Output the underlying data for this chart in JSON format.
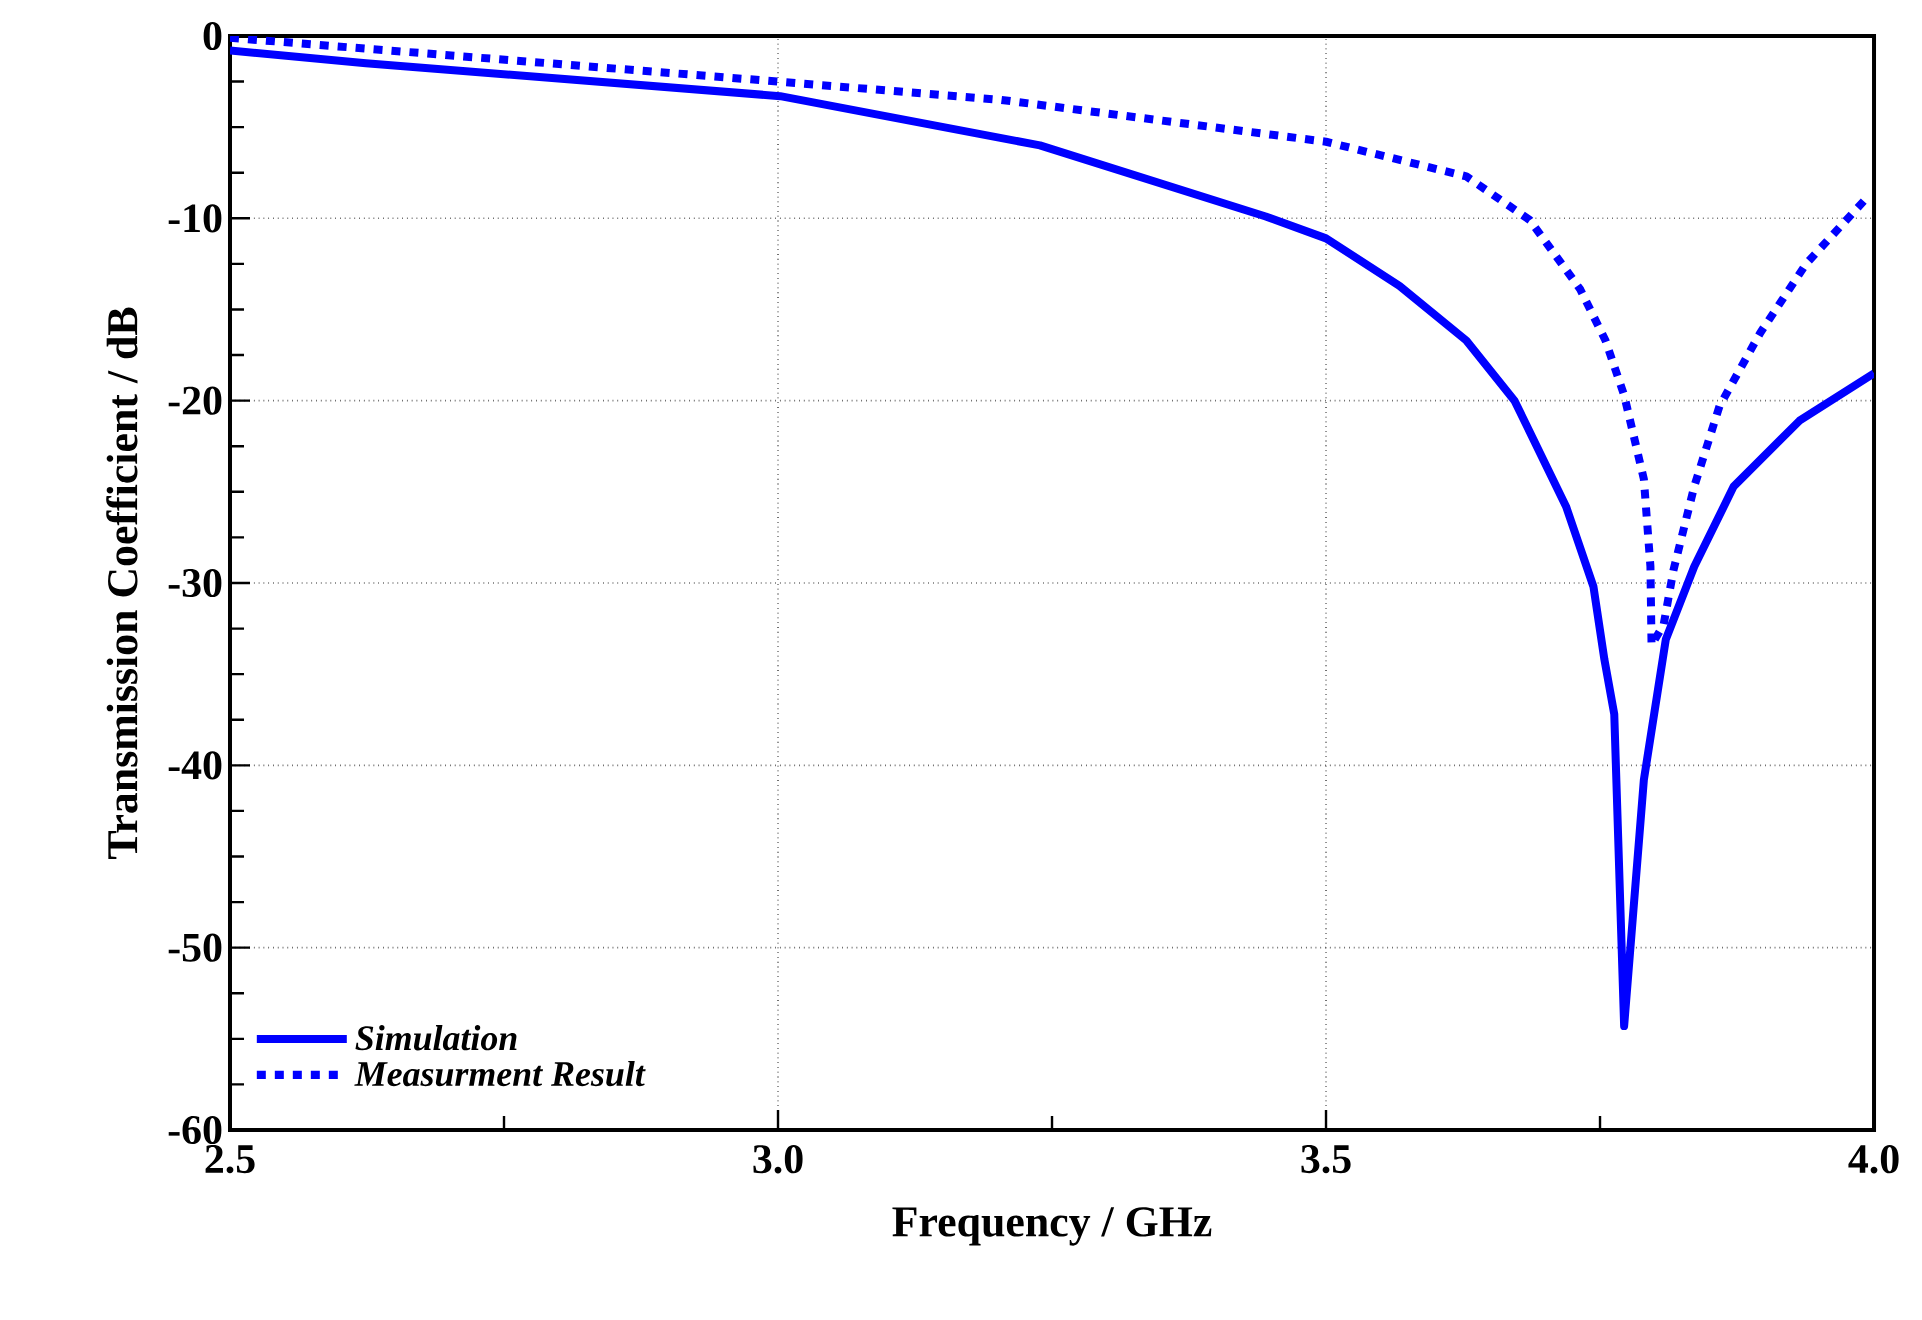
{
  "chart_data": {
    "type": "line",
    "xlabel": "Frequency / GHz",
    "ylabel": "Transmission Coefficient / dB",
    "xlim": [
      2.5,
      4.0
    ],
    "ylim": [
      -60,
      0
    ],
    "xticks": [
      2.5,
      {
        "value": 3,
        "label": "3.0"
      },
      3.5,
      {
        "value": 4,
        "label": "4.0"
      }
    ],
    "yticks": [
      -60,
      -50,
      -40,
      -30,
      -20,
      -10,
      0
    ],
    "grid": true,
    "legend": "bottom left",
    "series": [
      {
        "name": "Simulation",
        "color": "#0000ff",
        "line_style": "solid",
        "x": [
          2.5,
          2.624,
          3.002,
          3.239,
          3.445,
          3.5,
          3.567,
          3.628,
          3.672,
          3.719,
          3.744,
          3.754,
          3.763,
          3.772,
          3.79,
          3.81,
          3.836,
          3.872,
          3.932,
          4.0
        ],
        "values": [
          -0.8,
          -1.5,
          -3.3,
          -6.0,
          -9.9,
          -11.1,
          -13.7,
          -16.7,
          -20.0,
          -25.8,
          -30.2,
          -34.2,
          -37.2,
          -54.3,
          -40.8,
          -33.1,
          -29.1,
          -24.7,
          -21.1,
          -18.5
        ]
      },
      {
        "name": "Measurment Result",
        "color": "#0000ff",
        "line_style": "dotted",
        "x": [
          2.5,
          3.0,
          3.203,
          3.5,
          3.628,
          3.686,
          3.732,
          3.755,
          3.772,
          3.79,
          3.796,
          3.797,
          3.808,
          3.817,
          3.836,
          3.859,
          3.896,
          3.938,
          3.993
        ],
        "values": [
          -0.1,
          -2.5,
          -3.5,
          -5.8,
          -7.7,
          -10.1,
          -13.9,
          -16.7,
          -19.7,
          -24.3,
          -29.1,
          -33.4,
          -32.3,
          -29.3,
          -24.7,
          -20.3,
          -16.3,
          -12.5,
          -8.9
        ]
      }
    ]
  }
}
